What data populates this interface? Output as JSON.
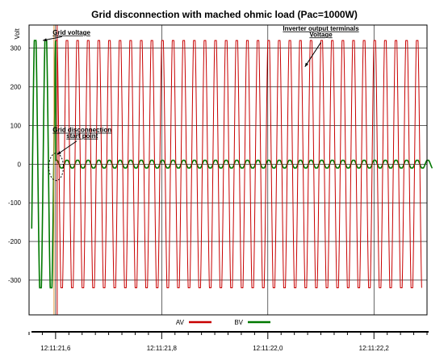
{
  "chart_data": {
    "type": "line",
    "title": "Grid disconnection with mached ohmic load (Pac=1000W)",
    "ylabel": "Volt",
    "xlabel": "",
    "ylim": [
      -390,
      360
    ],
    "yticks": [
      300,
      200,
      100,
      0,
      -100,
      -200,
      -300
    ],
    "xlim": [
      21.55,
      22.3
    ],
    "xticks": [
      {
        "value": 21.6,
        "label": "12:11:21,6"
      },
      {
        "value": 21.8,
        "label": "12:11:21,8"
      },
      {
        "value": 22.0,
        "label": "12:11:22,0"
      },
      {
        "value": 22.2,
        "label": "12:11:22,2"
      }
    ],
    "x_unit": "time (12:11:ss,s)",
    "grid": true,
    "legend_position": "bottom-center",
    "disconnection_time": 21.6,
    "series": [
      {
        "name": "AV",
        "color": "#c80000",
        "amplitude": 320,
        "frequency_hz": 50,
        "x_range": [
          21.6,
          22.29
        ],
        "description": "inverter output terminals voltage stays at ~±320 V after disconnection"
      },
      {
        "name": "BV",
        "color": "#007800",
        "amplitude_before": 320,
        "amplitude_after": 10,
        "frequency_hz": 50,
        "x_range": [
          21.555,
          22.31
        ],
        "description": "grid voltage ~±320 V before disconnection, ~±10 V after"
      }
    ],
    "annotations": [
      {
        "text": "Grid voltage",
        "x": 21.63,
        "y": 335
      },
      {
        "text": "Grid disconnection",
        "x": 21.65,
        "y": 83
      },
      {
        "text": "start point",
        "x": 21.65,
        "y": 68
      },
      {
        "text": "Inverter output terminals",
        "x": 22.1,
        "y": 345
      },
      {
        "text": "Voltage",
        "x": 22.1,
        "y": 330
      }
    ],
    "markers": [
      {
        "type": "ellipse",
        "x": 21.601,
        "y": -7,
        "note": "disconnection point"
      }
    ]
  }
}
